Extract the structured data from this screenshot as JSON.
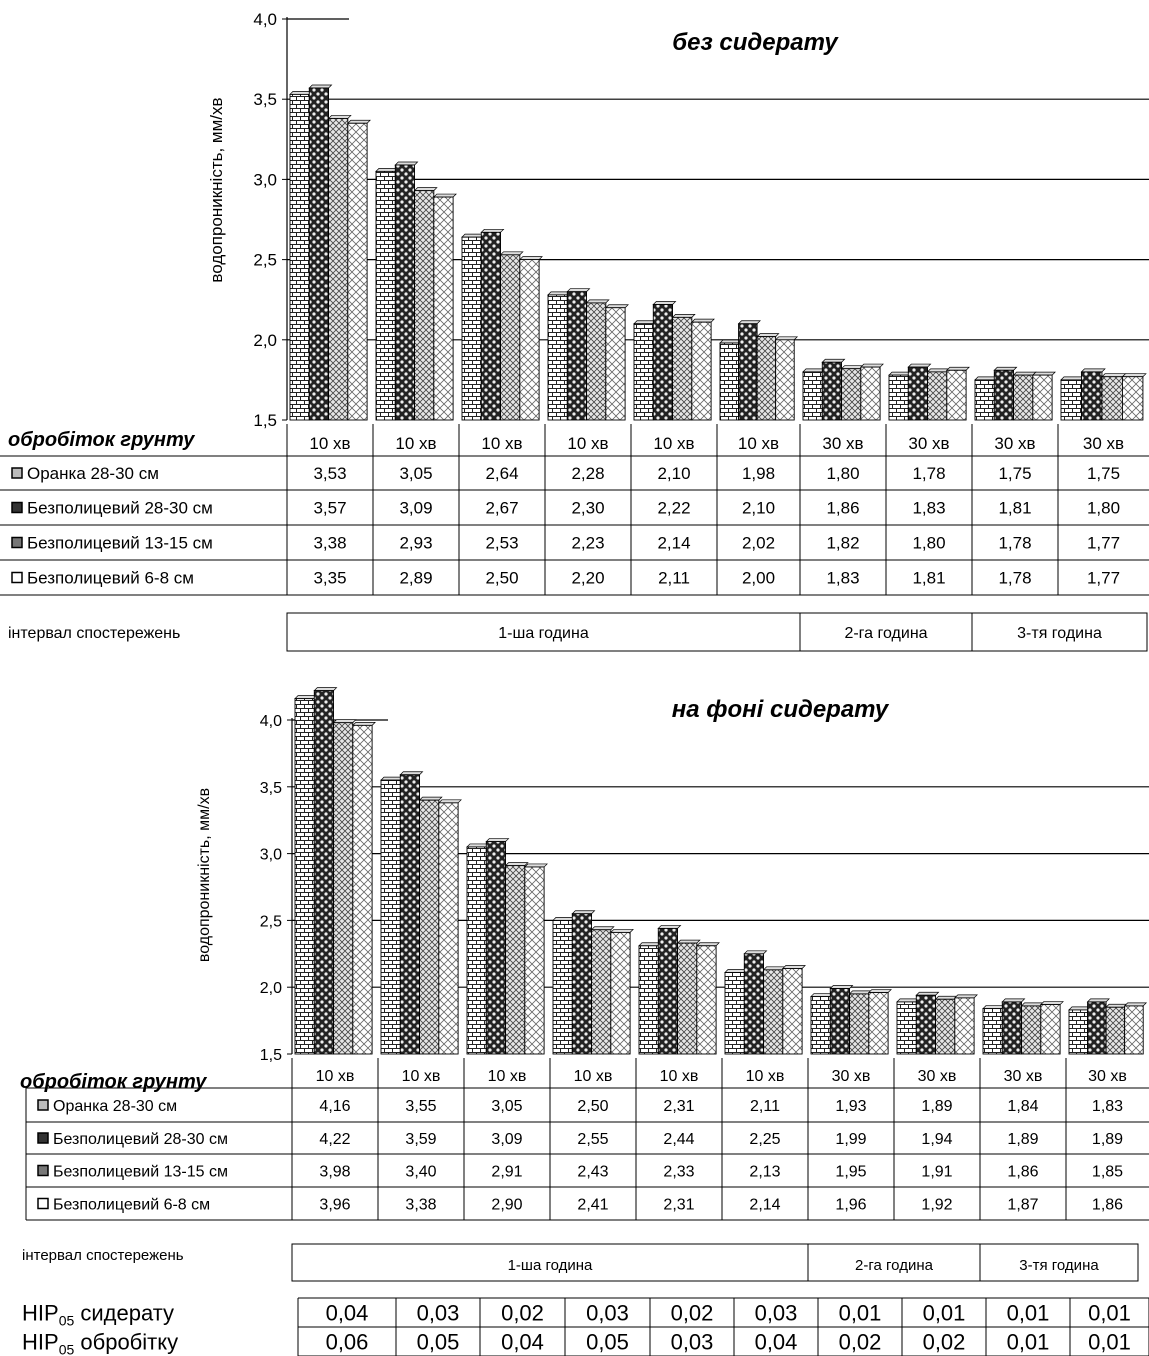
{
  "chart_data": [
    {
      "type": "bar",
      "title": "без сидерату",
      "ylabel": "водопроникність, мм/хв",
      "ylim": [
        1.5,
        4.0
      ],
      "yticks": [
        "1,5",
        "2,0",
        "2,5",
        "3,0",
        "3,5",
        "4,0"
      ],
      "table_header": "обробіток грунту",
      "categories": [
        "10 хв",
        "10 хв",
        "10 хв",
        "10 хв",
        "10 хв",
        "10 хв",
        "30 хв",
        "30 хв",
        "30 хв",
        "30 хв"
      ],
      "series": [
        {
          "name": "Оранка 28-30 см",
          "values": [
            3.53,
            3.05,
            2.64,
            2.28,
            2.1,
            1.98,
            1.8,
            1.78,
            1.75,
            1.75
          ],
          "labels": [
            "3,53",
            "3,05",
            "2,64",
            "2,28",
            "2,10",
            "1,98",
            "1,80",
            "1,78",
            "1,75",
            "1,75"
          ]
        },
        {
          "name": "Безполицевий 28-30 см",
          "values": [
            3.57,
            3.09,
            2.67,
            2.3,
            2.22,
            2.1,
            1.86,
            1.83,
            1.81,
            1.8
          ],
          "labels": [
            "3,57",
            "3,09",
            "2,67",
            "2,30",
            "2,22",
            "2,10",
            "1,86",
            "1,83",
            "1,81",
            "1,80"
          ]
        },
        {
          "name": "Безполицевий 13-15 см",
          "values": [
            3.38,
            2.93,
            2.53,
            2.23,
            2.14,
            2.02,
            1.82,
            1.8,
            1.78,
            1.77
          ],
          "labels": [
            "3,38",
            "2,93",
            "2,53",
            "2,23",
            "2,14",
            "2,02",
            "1,82",
            "1,80",
            "1,78",
            "1,77"
          ]
        },
        {
          "name": "Безполицевий 6-8 см",
          "values": [
            3.35,
            2.89,
            2.5,
            2.2,
            2.11,
            2.0,
            1.83,
            1.81,
            1.78,
            1.77
          ],
          "labels": [
            "3,35",
            "2,89",
            "2,50",
            "2,20",
            "2,11",
            "2,00",
            "1,83",
            "1,81",
            "1,78",
            "1,77"
          ]
        }
      ],
      "interval_label": "інтервал спостережень",
      "intervals": [
        {
          "label": "1-ша година",
          "count": 6
        },
        {
          "label": "2-га година",
          "count": 2
        },
        {
          "label": "3-тя година",
          "count": 2
        }
      ]
    },
    {
      "type": "bar",
      "title": "на фоні сидерату",
      "ylabel": "водопроникність, мм/хв",
      "ylim": [
        1.5,
        4.0
      ],
      "yticks": [
        "1,5",
        "2,0",
        "2,5",
        "3,0",
        "3,5",
        "4,0"
      ],
      "table_header": "обробіток грунту",
      "categories": [
        "10 хв",
        "10 хв",
        "10 хв",
        "10 хв",
        "10 хв",
        "10 хв",
        "30 хв",
        "30 хв",
        "30 хв",
        "30 хв"
      ],
      "series": [
        {
          "name": "Оранка 28-30 см",
          "values": [
            4.16,
            3.55,
            3.05,
            2.5,
            2.31,
            2.11,
            1.93,
            1.89,
            1.84,
            1.83
          ],
          "labels": [
            "4,16",
            "3,55",
            "3,05",
            "2,50",
            "2,31",
            "2,11",
            "1,93",
            "1,89",
            "1,84",
            "1,83"
          ]
        },
        {
          "name": "Безполицевий 28-30 см",
          "values": [
            4.22,
            3.59,
            3.09,
            2.55,
            2.44,
            2.25,
            1.99,
            1.94,
            1.89,
            1.89
          ],
          "labels": [
            "4,22",
            "3,59",
            "3,09",
            "2,55",
            "2,44",
            "2,25",
            "1,99",
            "1,94",
            "1,89",
            "1,89"
          ]
        },
        {
          "name": "Безполицевий 13-15 см",
          "values": [
            3.98,
            3.4,
            2.91,
            2.43,
            2.33,
            2.13,
            1.95,
            1.91,
            1.86,
            1.85
          ],
          "labels": [
            "3,98",
            "3,40",
            "2,91",
            "2,43",
            "2,33",
            "2,13",
            "1,95",
            "1,91",
            "1,86",
            "1,85"
          ]
        },
        {
          "name": "Безполицевий 6-8 см",
          "values": [
            3.96,
            3.38,
            2.9,
            2.41,
            2.31,
            2.14,
            1.96,
            1.92,
            1.87,
            1.86
          ],
          "labels": [
            "3,96",
            "3,38",
            "2,90",
            "2,41",
            "2,31",
            "2,14",
            "1,96",
            "1,92",
            "1,87",
            "1,86"
          ]
        }
      ],
      "interval_label": "інтервал спостережень",
      "intervals": [
        {
          "label": "1-ша година",
          "count": 6
        },
        {
          "label": "2-га година",
          "count": 2
        },
        {
          "label": "3-тя година",
          "count": 2
        }
      ]
    }
  ],
  "nir": {
    "rows": [
      {
        "label_main": "НІР",
        "label_sub": "05",
        "label_rest": " сидерату",
        "values": [
          "0,04",
          "0,03",
          "0,02",
          "0,03",
          "0,02",
          "0,03",
          "0,01",
          "0,01",
          "0,01",
          "0,01"
        ]
      },
      {
        "label_main": "НІР",
        "label_sub": "05",
        "label_rest": " обробітку",
        "values": [
          "0,06",
          "0,05",
          "0,04",
          "0,05",
          "0,03",
          "0,04",
          "0,02",
          "0,02",
          "0,01",
          "0,01"
        ]
      }
    ]
  }
}
